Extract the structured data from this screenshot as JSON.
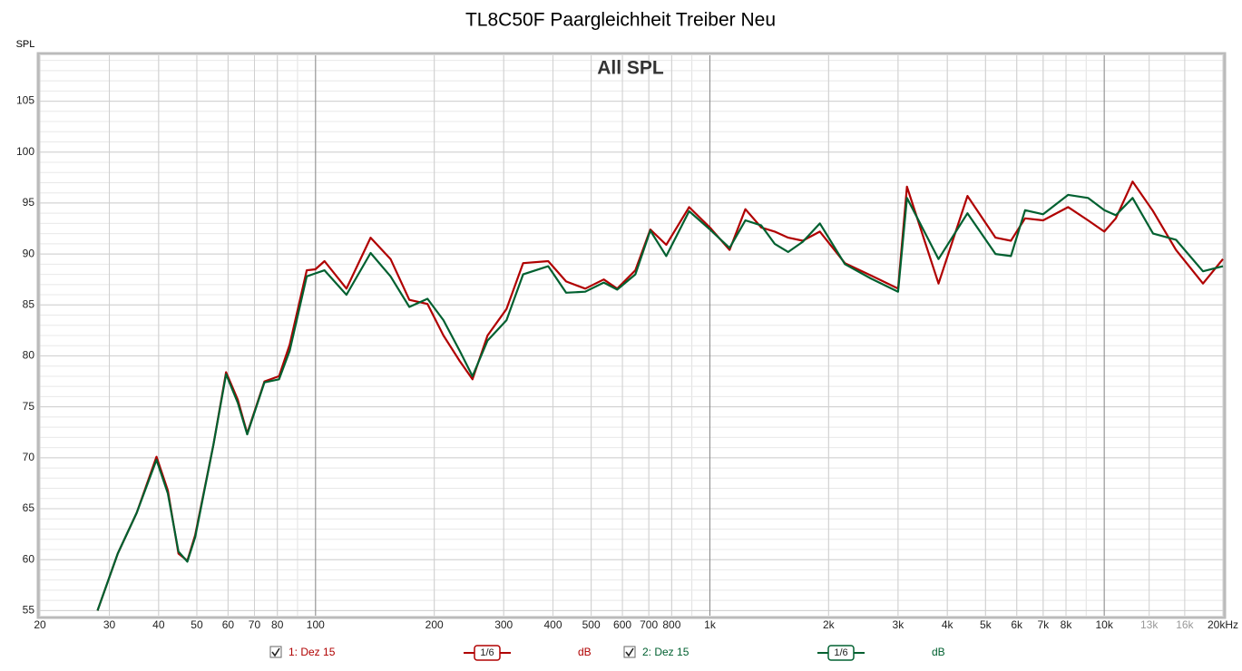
{
  "chart_data": {
    "type": "line",
    "title": "TL8C50F Paargleichheit Treiber Neu",
    "subtitle": "All SPL",
    "y_label": "SPL",
    "log_x": true,
    "grid": true,
    "minor_grid": true,
    "xlim": [
      20,
      20000
    ],
    "ylim": [
      54.5,
      109.5
    ],
    "xticks": [
      20,
      30,
      40,
      50,
      60,
      70,
      80,
      100,
      200,
      300,
      400,
      500,
      600,
      700,
      800,
      {
        "value": 1000,
        "label": "1k"
      },
      {
        "value": 2000,
        "label": "2k"
      },
      {
        "value": 3000,
        "label": "3k"
      },
      {
        "value": 4000,
        "label": "4k"
      },
      {
        "value": 5000,
        "label": "5k"
      },
      {
        "value": 6000,
        "label": "6k"
      },
      {
        "value": 7000,
        "label": "7k"
      },
      {
        "value": 8000,
        "label": "8k"
      },
      {
        "value": 10000,
        "label": "10k"
      },
      {
        "value": 13000,
        "label": "13k"
      },
      {
        "value": 16000,
        "label": "16k"
      },
      {
        "value": 20000,
        "label": "20kHz"
      }
    ],
    "yticks": [
      55,
      60,
      65,
      70,
      75,
      80,
      85,
      90,
      95,
      100,
      105
    ],
    "x": [
      28,
      31.5,
      35.2,
      39.5,
      42.2,
      44.9,
      47.3,
      49.5,
      55.1,
      59.3,
      63.5,
      67.1,
      74.2,
      80.8,
      86,
      95,
      99.9,
      105.4,
      119.8,
      137.9,
      155,
      172.9,
      192.2,
      211,
      232,
      250,
      273,
      305,
      336,
      389,
      432,
      483,
      538,
      582,
      647,
      706,
      775,
      886,
      1000,
      1122,
      1230,
      1350,
      1460,
      1580,
      1720,
      1900,
      2200,
      2560,
      3000,
      3160,
      3800,
      4500,
      5300,
      5800,
      6300,
      7000,
      8100,
      9100,
      10000,
      10700,
      11800,
      13300,
      15200,
      17800,
      20000
    ],
    "series": [
      {
        "name": "1: Dez 15",
        "smoothing": "1/6",
        "unit": "dB",
        "color": "#b00000",
        "values": [
          55,
          60.6,
          64.6,
          70.1,
          66.8,
          60.6,
          59.9,
          62.4,
          71.3,
          78.4,
          75.7,
          72.4,
          77.5,
          78.0,
          81.1,
          88.4,
          88.5,
          89.3,
          86.6,
          91.6,
          89.5,
          85.5,
          85.1,
          82.0,
          79.5,
          77.7,
          82.0,
          84.6,
          89.1,
          89.3,
          87.3,
          86.6,
          87.5,
          86.6,
          88.4,
          92.4,
          90.9,
          94.6,
          92.6,
          90.4,
          94.4,
          92.6,
          92.2,
          91.6,
          91.3,
          92.2,
          89.1,
          87.9,
          86.6,
          96.6,
          87.1,
          95.7,
          91.6,
          91.3,
          93.5,
          93.3,
          94.6,
          93.3,
          92.2,
          93.5,
          97.1,
          94.2,
          90.4,
          87.1,
          89.5
        ]
      },
      {
        "name": "2: Dez 15",
        "smoothing": "1/6",
        "unit": "dB",
        "color": "#006030",
        "values": [
          55,
          60.6,
          64.6,
          69.8,
          66.5,
          60.8,
          59.8,
          62.2,
          71.3,
          78.2,
          75.4,
          72.3,
          77.4,
          77.7,
          80.5,
          87.8,
          88.1,
          88.4,
          86.0,
          90.1,
          87.8,
          84.8,
          85.6,
          83.5,
          80.5,
          78.0,
          81.5,
          83.5,
          88.0,
          88.8,
          86.2,
          86.3,
          87.2,
          86.5,
          88.0,
          92.3,
          89.8,
          94.2,
          92.4,
          90.6,
          93.3,
          92.8,
          91.0,
          90.2,
          91.2,
          93.0,
          89.0,
          87.6,
          86.3,
          95.5,
          89.5,
          94.0,
          90.0,
          89.8,
          94.3,
          93.9,
          95.8,
          95.5,
          94.3,
          93.8,
          95.5,
          92.0,
          91.4,
          88.3,
          88.8
        ]
      }
    ]
  }
}
